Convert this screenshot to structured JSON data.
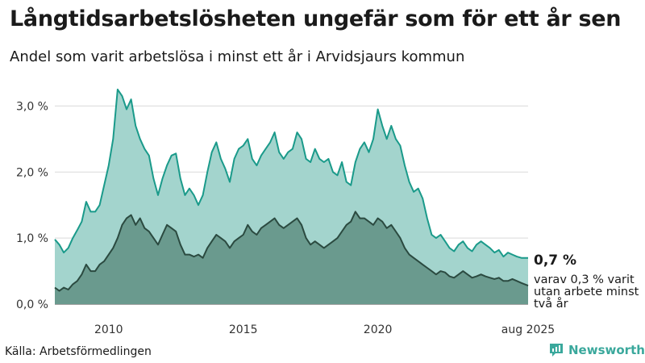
{
  "title": "Långtidsarbetslösheten ungefär som för ett år sen",
  "subtitle": "Andel som varit arbetslösa i minst ett år i Arvidsjaurs kommun",
  "source": "Källa: Arbetsförmedlingen",
  "logo": {
    "text": "Newsworthy",
    "icon": "bar-chart-icon"
  },
  "annotation": {
    "value": "0,7 %",
    "note": "varav 0,3 % varit utan arbete minst två år"
  },
  "colors": {
    "total_line": "#1a9a8a",
    "total_fill": "#a3d4cd",
    "longterm_line": "#2b4a40",
    "longterm_fill": "#6a9a8e",
    "grid": "#d9d9d9",
    "logo": "#3aa89c"
  },
  "chart_data": {
    "type": "area",
    "title": "Långtidsarbetslösheten ungefär som för ett år sen",
    "subtitle": "Andel som varit arbetslösa i minst ett år i Arvidsjaurs kommun",
    "x_range": [
      "2008-01",
      "2025-08"
    ],
    "y_range": [
      0,
      3.2
    ],
    "y_ticks": [
      {
        "value": 0,
        "label": "0,0 %"
      },
      {
        "value": 1,
        "label": "1,0 %"
      },
      {
        "value": 2,
        "label": "2,0 %"
      },
      {
        "value": 3,
        "label": "3,0 %"
      }
    ],
    "x_ticks": [
      {
        "value": "2010",
        "label": "2010"
      },
      {
        "value": "2015",
        "label": "2015"
      },
      {
        "value": "2020",
        "label": "2020"
      },
      {
        "value": "2025-08",
        "label": "aug 2025"
      }
    ],
    "grid": true,
    "series": [
      {
        "key": "total",
        "points": [
          [
            "2008-01",
            0.98
          ],
          [
            "2008-03",
            0.9
          ],
          [
            "2008-05",
            0.78
          ],
          [
            "2008-07",
            0.85
          ],
          [
            "2008-09",
            1.0
          ],
          [
            "2008-11",
            1.12
          ],
          [
            "2009-01",
            1.25
          ],
          [
            "2009-03",
            1.55
          ],
          [
            "2009-05",
            1.4
          ],
          [
            "2009-07",
            1.4
          ],
          [
            "2009-09",
            1.5
          ],
          [
            "2009-11",
            1.8
          ],
          [
            "2010-01",
            2.1
          ],
          [
            "2010-03",
            2.5
          ],
          [
            "2010-05",
            3.25
          ],
          [
            "2010-07",
            3.15
          ],
          [
            "2010-09",
            2.95
          ],
          [
            "2010-11",
            3.1
          ],
          [
            "2011-01",
            2.7
          ],
          [
            "2011-03",
            2.5
          ],
          [
            "2011-05",
            2.35
          ],
          [
            "2011-07",
            2.25
          ],
          [
            "2011-09",
            1.9
          ],
          [
            "2011-11",
            1.65
          ],
          [
            "2012-01",
            1.9
          ],
          [
            "2012-03",
            2.1
          ],
          [
            "2012-05",
            2.25
          ],
          [
            "2012-07",
            2.28
          ],
          [
            "2012-09",
            1.9
          ],
          [
            "2012-11",
            1.65
          ],
          [
            "2013-01",
            1.75
          ],
          [
            "2013-03",
            1.65
          ],
          [
            "2013-05",
            1.5
          ],
          [
            "2013-07",
            1.65
          ],
          [
            "2013-09",
            2.0
          ],
          [
            "2013-11",
            2.3
          ],
          [
            "2014-01",
            2.45
          ],
          [
            "2014-03",
            2.2
          ],
          [
            "2014-05",
            2.05
          ],
          [
            "2014-07",
            1.85
          ],
          [
            "2014-09",
            2.2
          ],
          [
            "2014-11",
            2.35
          ],
          [
            "2015-01",
            2.4
          ],
          [
            "2015-03",
            2.5
          ],
          [
            "2015-05",
            2.2
          ],
          [
            "2015-07",
            2.1
          ],
          [
            "2015-09",
            2.25
          ],
          [
            "2015-11",
            2.35
          ],
          [
            "2016-01",
            2.45
          ],
          [
            "2016-03",
            2.6
          ],
          [
            "2016-05",
            2.3
          ],
          [
            "2016-07",
            2.2
          ],
          [
            "2016-09",
            2.3
          ],
          [
            "2016-11",
            2.35
          ],
          [
            "2017-01",
            2.6
          ],
          [
            "2017-03",
            2.5
          ],
          [
            "2017-05",
            2.2
          ],
          [
            "2017-07",
            2.15
          ],
          [
            "2017-09",
            2.35
          ],
          [
            "2017-11",
            2.2
          ],
          [
            "2018-01",
            2.15
          ],
          [
            "2018-03",
            2.2
          ],
          [
            "2018-05",
            2.0
          ],
          [
            "2018-07",
            1.95
          ],
          [
            "2018-09",
            2.15
          ],
          [
            "2018-11",
            1.85
          ],
          [
            "2019-01",
            1.8
          ],
          [
            "2019-03",
            2.15
          ],
          [
            "2019-05",
            2.35
          ],
          [
            "2019-07",
            2.45
          ],
          [
            "2019-09",
            2.3
          ],
          [
            "2019-11",
            2.5
          ],
          [
            "2020-01",
            2.95
          ],
          [
            "2020-03",
            2.7
          ],
          [
            "2020-05",
            2.5
          ],
          [
            "2020-07",
            2.7
          ],
          [
            "2020-09",
            2.5
          ],
          [
            "2020-11",
            2.4
          ],
          [
            "2021-01",
            2.1
          ],
          [
            "2021-03",
            1.85
          ],
          [
            "2021-05",
            1.7
          ],
          [
            "2021-07",
            1.75
          ],
          [
            "2021-09",
            1.6
          ],
          [
            "2021-11",
            1.3
          ],
          [
            "2022-01",
            1.05
          ],
          [
            "2022-03",
            1.0
          ],
          [
            "2022-05",
            1.05
          ],
          [
            "2022-07",
            0.95
          ],
          [
            "2022-09",
            0.85
          ],
          [
            "2022-11",
            0.8
          ],
          [
            "2023-01",
            0.9
          ],
          [
            "2023-03",
            0.95
          ],
          [
            "2023-05",
            0.85
          ],
          [
            "2023-07",
            0.8
          ],
          [
            "2023-09",
            0.9
          ],
          [
            "2023-11",
            0.95
          ],
          [
            "2024-01",
            0.9
          ],
          [
            "2024-03",
            0.85
          ],
          [
            "2024-05",
            0.78
          ],
          [
            "2024-07",
            0.82
          ],
          [
            "2024-09",
            0.72
          ],
          [
            "2024-11",
            0.78
          ],
          [
            "2025-01",
            0.75
          ],
          [
            "2025-03",
            0.72
          ],
          [
            "2025-05",
            0.7
          ],
          [
            "2025-08",
            0.7
          ]
        ]
      },
      {
        "key": "two_years",
        "points": [
          [
            "2008-01",
            0.25
          ],
          [
            "2008-03",
            0.2
          ],
          [
            "2008-05",
            0.25
          ],
          [
            "2008-07",
            0.22
          ],
          [
            "2008-09",
            0.3
          ],
          [
            "2008-11",
            0.35
          ],
          [
            "2009-01",
            0.45
          ],
          [
            "2009-03",
            0.6
          ],
          [
            "2009-05",
            0.5
          ],
          [
            "2009-07",
            0.5
          ],
          [
            "2009-09",
            0.6
          ],
          [
            "2009-11",
            0.65
          ],
          [
            "2010-01",
            0.75
          ],
          [
            "2010-03",
            0.85
          ],
          [
            "2010-05",
            1.0
          ],
          [
            "2010-07",
            1.2
          ],
          [
            "2010-09",
            1.3
          ],
          [
            "2010-11",
            1.35
          ],
          [
            "2011-01",
            1.2
          ],
          [
            "2011-03",
            1.3
          ],
          [
            "2011-05",
            1.15
          ],
          [
            "2011-07",
            1.1
          ],
          [
            "2011-09",
            1.0
          ],
          [
            "2011-11",
            0.9
          ],
          [
            "2012-01",
            1.05
          ],
          [
            "2012-03",
            1.2
          ],
          [
            "2012-05",
            1.15
          ],
          [
            "2012-07",
            1.1
          ],
          [
            "2012-09",
            0.9
          ],
          [
            "2012-11",
            0.75
          ],
          [
            "2013-01",
            0.75
          ],
          [
            "2013-03",
            0.72
          ],
          [
            "2013-05",
            0.75
          ],
          [
            "2013-07",
            0.7
          ],
          [
            "2013-09",
            0.85
          ],
          [
            "2013-11",
            0.95
          ],
          [
            "2014-01",
            1.05
          ],
          [
            "2014-03",
            1.0
          ],
          [
            "2014-05",
            0.95
          ],
          [
            "2014-07",
            0.85
          ],
          [
            "2014-09",
            0.95
          ],
          [
            "2014-11",
            1.0
          ],
          [
            "2015-01",
            1.05
          ],
          [
            "2015-03",
            1.2
          ],
          [
            "2015-05",
            1.1
          ],
          [
            "2015-07",
            1.05
          ],
          [
            "2015-09",
            1.15
          ],
          [
            "2015-11",
            1.2
          ],
          [
            "2016-01",
            1.25
          ],
          [
            "2016-03",
            1.3
          ],
          [
            "2016-05",
            1.2
          ],
          [
            "2016-07",
            1.15
          ],
          [
            "2016-09",
            1.2
          ],
          [
            "2016-11",
            1.25
          ],
          [
            "2017-01",
            1.3
          ],
          [
            "2017-03",
            1.2
          ],
          [
            "2017-05",
            1.0
          ],
          [
            "2017-07",
            0.9
          ],
          [
            "2017-09",
            0.95
          ],
          [
            "2017-11",
            0.9
          ],
          [
            "2018-01",
            0.85
          ],
          [
            "2018-03",
            0.9
          ],
          [
            "2018-05",
            0.95
          ],
          [
            "2018-07",
            1.0
          ],
          [
            "2018-09",
            1.1
          ],
          [
            "2018-11",
            1.2
          ],
          [
            "2019-01",
            1.25
          ],
          [
            "2019-03",
            1.4
          ],
          [
            "2019-05",
            1.3
          ],
          [
            "2019-07",
            1.3
          ],
          [
            "2019-09",
            1.25
          ],
          [
            "2019-11",
            1.2
          ],
          [
            "2020-01",
            1.3
          ],
          [
            "2020-03",
            1.25
          ],
          [
            "2020-05",
            1.15
          ],
          [
            "2020-07",
            1.2
          ],
          [
            "2020-09",
            1.1
          ],
          [
            "2020-11",
            1.0
          ],
          [
            "2021-01",
            0.85
          ],
          [
            "2021-03",
            0.75
          ],
          [
            "2021-05",
            0.7
          ],
          [
            "2021-07",
            0.65
          ],
          [
            "2021-09",
            0.6
          ],
          [
            "2021-11",
            0.55
          ],
          [
            "2022-01",
            0.5
          ],
          [
            "2022-03",
            0.45
          ],
          [
            "2022-05",
            0.5
          ],
          [
            "2022-07",
            0.48
          ],
          [
            "2022-09",
            0.42
          ],
          [
            "2022-11",
            0.4
          ],
          [
            "2023-01",
            0.45
          ],
          [
            "2023-03",
            0.5
          ],
          [
            "2023-05",
            0.45
          ],
          [
            "2023-07",
            0.4
          ],
          [
            "2023-09",
            0.42
          ],
          [
            "2023-11",
            0.45
          ],
          [
            "2024-01",
            0.42
          ],
          [
            "2024-03",
            0.4
          ],
          [
            "2024-05",
            0.38
          ],
          [
            "2024-07",
            0.4
          ],
          [
            "2024-09",
            0.35
          ],
          [
            "2024-11",
            0.35
          ],
          [
            "2025-01",
            0.38
          ],
          [
            "2025-03",
            0.35
          ],
          [
            "2025-05",
            0.32
          ],
          [
            "2025-08",
            0.28
          ]
        ]
      }
    ]
  }
}
